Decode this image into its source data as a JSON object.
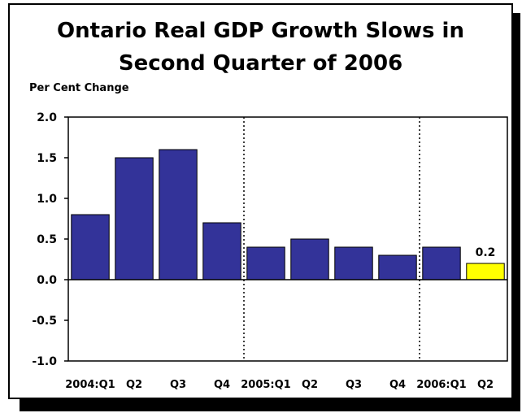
{
  "chart_data": {
    "type": "bar",
    "title_line1": "Ontario Real GDP Growth Slows in",
    "title_line2": "Second Quarter of 2006",
    "ylabel": "Per Cent Change",
    "xlabel": "",
    "ylim": [
      -1.0,
      2.0
    ],
    "yticks": [
      "2.0",
      "1.5",
      "1.0",
      "0.5",
      "0.0",
      "-0.5",
      "-1.0"
    ],
    "categories": [
      "2004:Q1",
      "Q2",
      "Q3",
      "Q4",
      "2005:Q1",
      "Q2",
      "Q3",
      "Q4",
      "2006:Q1",
      "Q2"
    ],
    "values": [
      0.8,
      1.5,
      1.6,
      0.7,
      0.4,
      0.5,
      0.4,
      0.3,
      0.4,
      0.2
    ],
    "data_labels": {
      "9": "0.2"
    },
    "bar_colors": [
      "#333399",
      "#333399",
      "#333399",
      "#333399",
      "#333399",
      "#333399",
      "#333399",
      "#333399",
      "#333399",
      "#ffff00"
    ],
    "year_separators_after": [
      3,
      7
    ],
    "grid": false,
    "legend": "none"
  }
}
